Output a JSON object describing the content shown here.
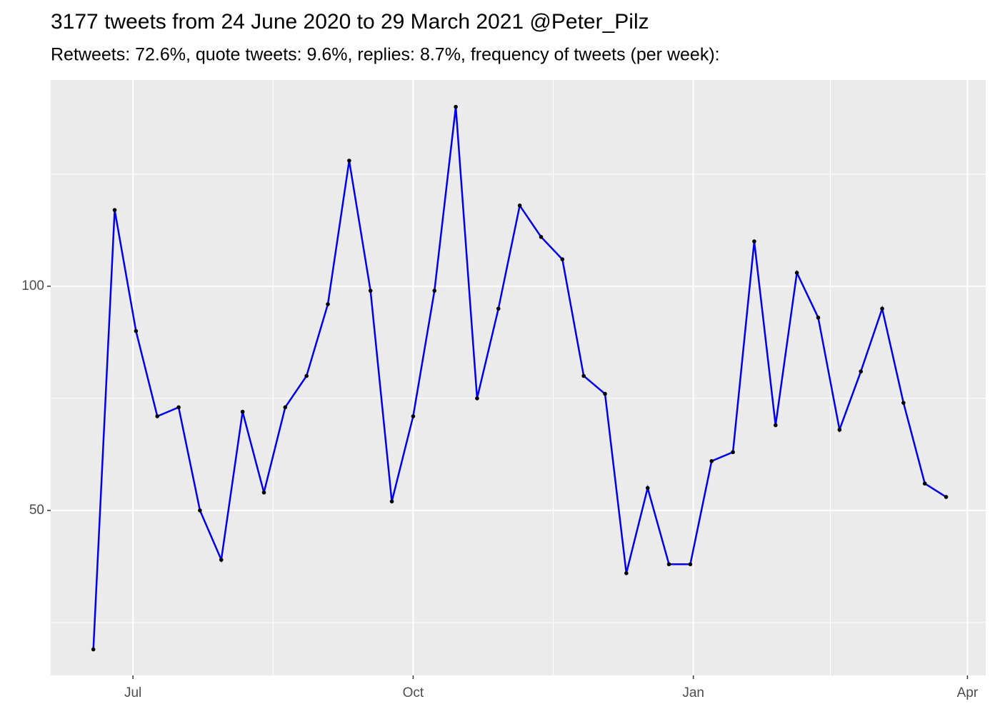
{
  "chart_data": {
    "type": "line",
    "title": "3177 tweets from 24 June 2020 to 29 March 2021 @Peter_Pilz",
    "subtitle": "Retweets: 72.6%, quote tweets: 9.6%, replies: 8.7%, frequency of tweets (per week):",
    "x": [
      "2020-06-18",
      "2020-06-25",
      "2020-07-02",
      "2020-07-09",
      "2020-07-16",
      "2020-07-23",
      "2020-07-30",
      "2020-08-06",
      "2020-08-13",
      "2020-08-20",
      "2020-08-27",
      "2020-09-03",
      "2020-09-10",
      "2020-09-17",
      "2020-09-24",
      "2020-10-01",
      "2020-10-08",
      "2020-10-15",
      "2020-10-22",
      "2020-10-29",
      "2020-11-05",
      "2020-11-12",
      "2020-11-19",
      "2020-11-26",
      "2020-12-03",
      "2020-12-10",
      "2020-12-17",
      "2020-12-24",
      "2020-12-31",
      "2021-01-07",
      "2021-01-14",
      "2021-01-21",
      "2021-01-28",
      "2021-02-04",
      "2021-02-11",
      "2021-02-18",
      "2021-02-25",
      "2021-03-04",
      "2021-03-11",
      "2021-03-18",
      "2021-03-25"
    ],
    "series": [
      {
        "color": "#0000ee",
        "values": [
          19,
          117,
          90,
          71,
          73,
          50,
          39,
          72,
          54,
          73,
          80,
          96,
          128,
          99,
          52,
          71,
          99,
          140,
          75,
          95,
          118,
          111,
          106,
          80,
          76,
          36,
          55,
          38,
          38,
          61,
          63,
          110,
          69,
          103,
          93,
          68,
          81,
          95,
          74,
          56,
          53
        ]
      }
    ],
    "xlim": [
      "2020-06-04",
      "2021-04-07"
    ],
    "xticks": [
      {
        "value": "2020-07-01",
        "label": "Jul"
      },
      {
        "value": "2020-10-01",
        "label": "Oct"
      },
      {
        "value": "2021-01-01",
        "label": "Jan"
      },
      {
        "value": "2021-04-01",
        "label": "Apr"
      }
    ],
    "ylim": [
      13.2,
      146
    ],
    "yticks": [
      50,
      100
    ],
    "grid": true
  }
}
